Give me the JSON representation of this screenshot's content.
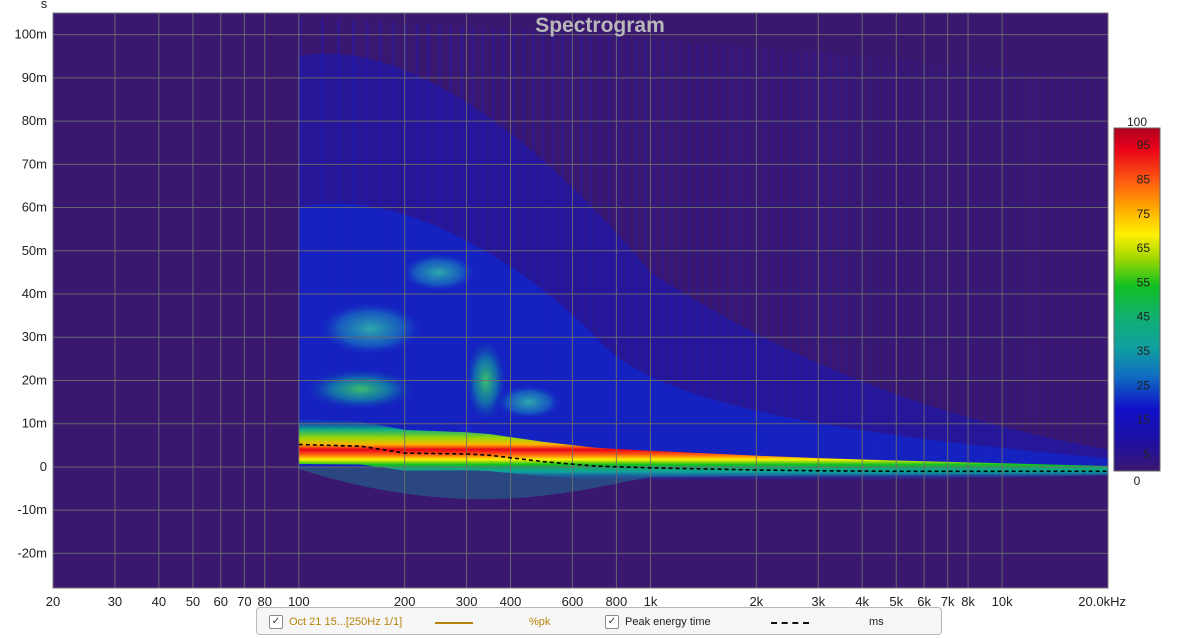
{
  "chart_data": {
    "type": "heatmap",
    "title": "Spectrogram",
    "xscale": "log",
    "xlim": [
      20,
      20000
    ],
    "ylim": [
      -0.028,
      0.105
    ],
    "ylabel": "s",
    "x_ticks": [
      {
        "v": 20,
        "t": "20"
      },
      {
        "v": 30,
        "t": "30"
      },
      {
        "v": 40,
        "t": "40"
      },
      {
        "v": 50,
        "t": "50"
      },
      {
        "v": 60,
        "t": "60"
      },
      {
        "v": 70,
        "t": "70"
      },
      {
        "v": 80,
        "t": "80"
      },
      {
        "v": 100,
        "t": "100"
      },
      {
        "v": 200,
        "t": "200"
      },
      {
        "v": 300,
        "t": "300"
      },
      {
        "v": 400,
        "t": "400"
      },
      {
        "v": 600,
        "t": "600"
      },
      {
        "v": 800,
        "t": "800"
      },
      {
        "v": 1000,
        "t": "1k"
      },
      {
        "v": 2000,
        "t": "2k"
      },
      {
        "v": 3000,
        "t": "3k"
      },
      {
        "v": 4000,
        "t": "4k"
      },
      {
        "v": 5000,
        "t": "5k"
      },
      {
        "v": 6000,
        "t": "6k"
      },
      {
        "v": 7000,
        "t": "7k"
      },
      {
        "v": 8000,
        "t": "8k"
      },
      {
        "v": 10000,
        "t": "10k"
      },
      {
        "v": 20000,
        "t": "20.0kHz"
      }
    ],
    "y_ticks": [
      {
        "v": 0.1,
        "t": "100m"
      },
      {
        "v": 0.09,
        "t": "90m"
      },
      {
        "v": 0.08,
        "t": "80m"
      },
      {
        "v": 0.07,
        "t": "70m"
      },
      {
        "v": 0.06,
        "t": "60m"
      },
      {
        "v": 0.05,
        "t": "50m"
      },
      {
        "v": 0.04,
        "t": "40m"
      },
      {
        "v": 0.03,
        "t": "30m"
      },
      {
        "v": 0.02,
        "t": "20m"
      },
      {
        "v": 0.01,
        "t": "10m"
      },
      {
        "v": 0,
        "t": "0"
      },
      {
        "v": -0.01,
        "t": "-10m"
      },
      {
        "v": -0.02,
        "t": "-20m"
      }
    ],
    "colorbar": {
      "range": [
        0,
        100
      ],
      "top_label": "100",
      "bottom_label": "0",
      "labels": [
        "95",
        "85",
        "75",
        "65",
        "55",
        "45",
        "35",
        "25",
        "15",
        "5"
      ]
    },
    "peak_energy_time": {
      "name": "Peak energy time",
      "x": [
        100,
        150,
        200,
        300,
        350,
        500,
        700,
        1000,
        2000,
        3000,
        5000,
        10000,
        20000
      ],
      "y": [
        0.0052,
        0.0048,
        0.0032,
        0.003,
        0.0027,
        0.0012,
        0.0002,
        -0.0002,
        -0.0007,
        -0.0009,
        -0.001,
        -0.001,
        -0.001
      ]
    },
    "grid": true,
    "colors": {
      "background": "#3a1870",
      "grid": "#6e6e6e",
      "title": "#b8b8b8",
      "peak_line": "#000000"
    }
  },
  "legend": {
    "item1_label": "Oct 21 15...[250Hz 1/1]",
    "item1_unit": "%pk",
    "item2_label": "Peak energy time",
    "item2_unit": "ms",
    "check_glyph": "✓"
  }
}
